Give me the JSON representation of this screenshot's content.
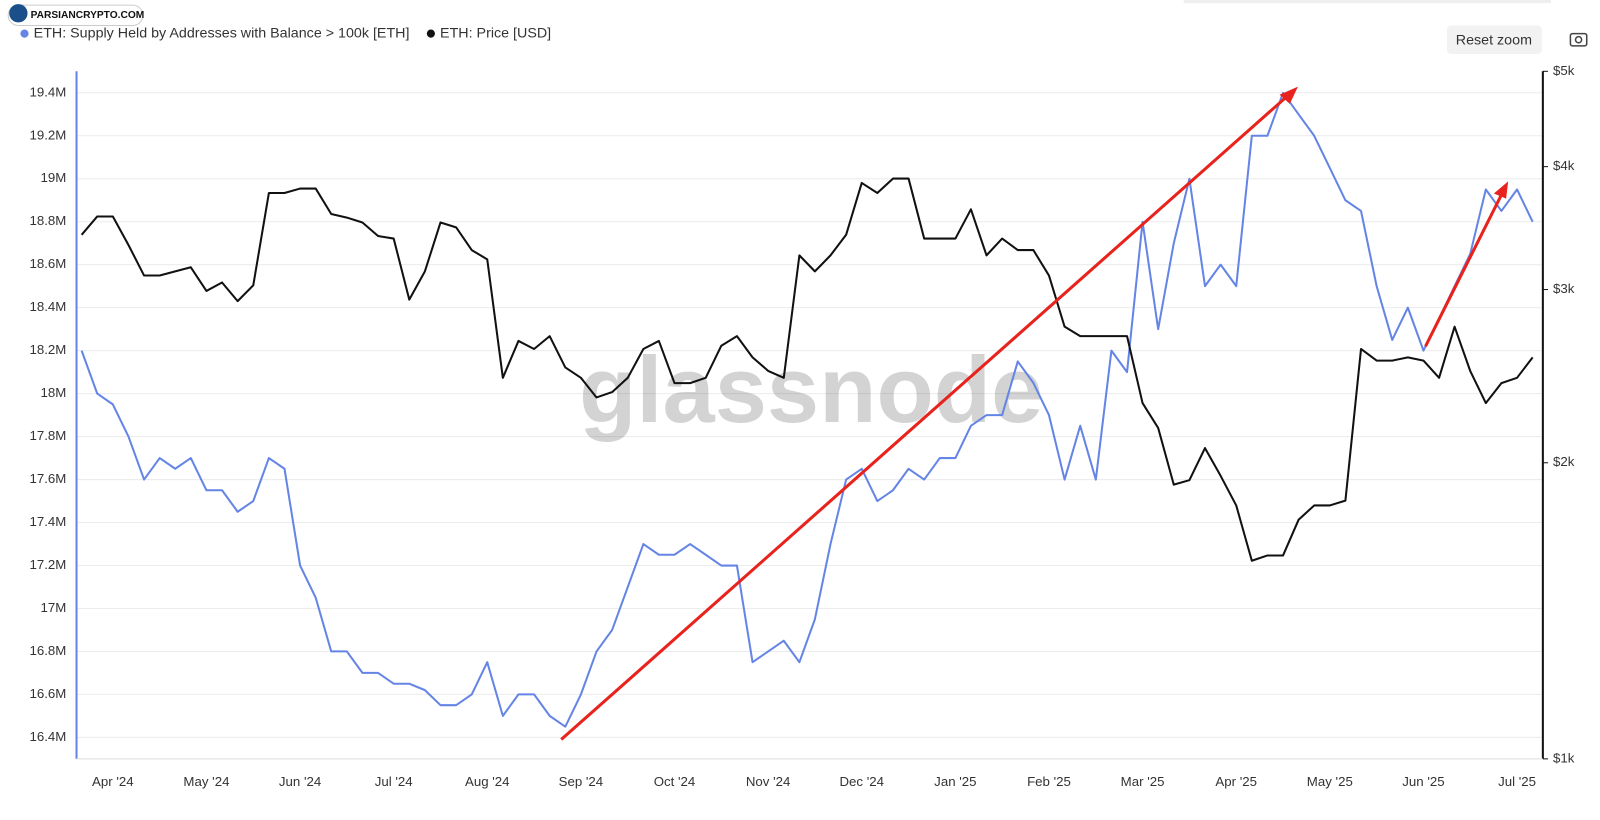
{
  "chart_data": {
    "type": "line",
    "categories": [
      null,
      null,
      "Apr '24",
      null,
      null,
      null,
      null,
      null,
      "May '24",
      null,
      null,
      null,
      null,
      null,
      "Jun '24",
      null,
      null,
      null,
      null,
      null,
      "Jul '24",
      null,
      null,
      null,
      null,
      null,
      "Aug '24",
      null,
      null,
      null,
      null,
      null,
      "Sep '24",
      null,
      null,
      null,
      null,
      null,
      "Oct '24",
      null,
      null,
      null,
      null,
      null,
      "Nov '24",
      null,
      null,
      null,
      null,
      null,
      "Dec '24",
      null,
      null,
      null,
      null,
      null,
      "Jan '25",
      null,
      null,
      null,
      null,
      null,
      "Feb '25",
      null,
      null,
      null,
      null,
      null,
      "Mar '25",
      null,
      null,
      null,
      null,
      null,
      "Apr '25",
      null,
      null,
      null,
      null,
      null,
      "May '25",
      null,
      null,
      null,
      null,
      null,
      "Jun '25",
      null,
      null,
      null,
      null,
      null,
      "Jul '25",
      null
    ],
    "series": [
      {
        "name": "ETH: Supply Held by Addresses with Balance > 100k [ETH]",
        "color": "#6585e6",
        "axis": "y",
        "values": [
          18200000,
          18000000,
          17950000,
          17800000,
          17600000,
          17700000,
          17650000,
          17700000,
          17550000,
          17550000,
          17450000,
          17500000,
          17700000,
          17650000,
          17200000,
          17050000,
          16800000,
          16800000,
          16700000,
          16700000,
          16650000,
          16650000,
          16620000,
          16550000,
          16550000,
          16600000,
          16750000,
          16500000,
          16600000,
          16600000,
          16500000,
          16450000,
          16600000,
          16800000,
          16900000,
          17100000,
          17300000,
          17250000,
          17250000,
          17300000,
          17250000,
          17200000,
          17200000,
          16750000,
          16800000,
          16850000,
          16750000,
          16950000,
          17300000,
          17600000,
          17650000,
          17500000,
          17550000,
          17650000,
          17600000,
          17700000,
          17700000,
          17850000,
          17900000,
          17900000,
          18150000,
          18050000,
          17900000,
          17600000,
          17850000,
          17600000,
          18200000,
          18100000,
          18800000,
          18300000,
          18700000,
          19000000,
          18500000,
          18600000,
          18500000,
          19200000,
          19200000,
          19400000,
          19300000,
          19200000,
          19050000,
          18900000,
          18850000,
          18500000,
          18250000,
          18400000,
          18200000,
          18350000,
          18500000,
          18650000,
          18950000,
          18850000,
          18950000,
          18800000
        ]
      },
      {
        "name": "ETH: Price [USD]",
        "color": "#111111",
        "axis": "y2",
        "values": [
          3410,
          3560,
          3560,
          3330,
          3100,
          3100,
          3130,
          3160,
          2990,
          3050,
          2920,
          3030,
          3760,
          3760,
          3800,
          3800,
          3580,
          3550,
          3510,
          3400,
          3380,
          2930,
          3130,
          3510,
          3470,
          3290,
          3220,
          2440,
          2660,
          2610,
          2690,
          2500,
          2440,
          2330,
          2360,
          2440,
          2610,
          2660,
          2410,
          2410,
          2440,
          2630,
          2690,
          2560,
          2480,
          2440,
          3250,
          3130,
          3250,
          3410,
          3850,
          3760,
          3890,
          3890,
          3380,
          3380,
          3380,
          3620,
          3250,
          3380,
          3290,
          3290,
          3100,
          2750,
          2690,
          2690,
          2690,
          2690,
          2300,
          2170,
          1900,
          1920,
          2070,
          1940,
          1810,
          1590,
          1610,
          1610,
          1750,
          1810,
          1810,
          1830,
          2610,
          2540,
          2540,
          2560,
          2540,
          2440,
          2750,
          2480,
          2300,
          2410,
          2440,
          2560
        ]
      }
    ],
    "ylim": [
      16300000,
      19500000
    ],
    "yticks": [
      {
        "value": 16400000,
        "label": "16.4M"
      },
      {
        "value": 16600000,
        "label": "16.6M"
      },
      {
        "value": 16800000,
        "label": "16.8M"
      },
      {
        "value": 17000000,
        "label": "17M"
      },
      {
        "value": 17200000,
        "label": "17.2M"
      },
      {
        "value": 17400000,
        "label": "17.4M"
      },
      {
        "value": 17600000,
        "label": "17.6M"
      },
      {
        "value": 17800000,
        "label": "17.8M"
      },
      {
        "value": 18000000,
        "label": "18M"
      },
      {
        "value": 18200000,
        "label": "18.2M"
      },
      {
        "value": 18400000,
        "label": "18.4M"
      },
      {
        "value": 18600000,
        "label": "18.6M"
      },
      {
        "value": 18800000,
        "label": "18.8M"
      },
      {
        "value": 19000000,
        "label": "19M"
      },
      {
        "value": 19200000,
        "label": "19.2M"
      },
      {
        "value": 19400000,
        "label": "19.4M"
      }
    ],
    "y2lim": [
      1000,
      5000
    ],
    "y2ticks": [
      {
        "value": 1000,
        "label": "$1k"
      },
      {
        "value": 2000,
        "label": "$2k"
      },
      {
        "value": 3000,
        "label": "$3k"
      },
      {
        "value": 4000,
        "label": "$4k"
      },
      {
        "value": 5000,
        "label": "$5k"
      }
    ],
    "y2_log": true,
    "grid": true
  },
  "ui": {
    "reset_zoom": "Reset zoom",
    "watermark": "glassnode",
    "logo": "PARSIANCRYPTO.COM"
  }
}
